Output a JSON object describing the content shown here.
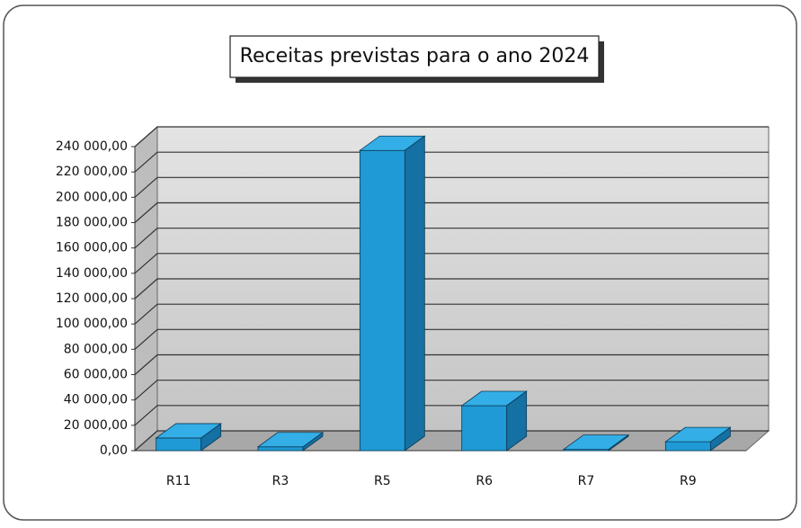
{
  "chart_data": {
    "type": "bar3d",
    "title": "Receitas previstas para o ano 2024",
    "categories": [
      "R11",
      "R3",
      "R5",
      "R6",
      "R7",
      "R9"
    ],
    "values": [
      10000,
      3000,
      237000,
      35500,
      1000,
      7000
    ],
    "color": "#1f9ad6",
    "ylim": [
      0,
      240000
    ],
    "yticks": [
      {
        "value": 0,
        "label": "0,00"
      },
      {
        "value": 20000,
        "label": "20 000,00"
      },
      {
        "value": 40000,
        "label": "40 000,00"
      },
      {
        "value": 60000,
        "label": "60 000,00"
      },
      {
        "value": 80000,
        "label": "80 000,00"
      },
      {
        "value": 100000,
        "label": "100 000,00"
      },
      {
        "value": 120000,
        "label": "120 000,00"
      },
      {
        "value": 140000,
        "label": "140 000,00"
      },
      {
        "value": 160000,
        "label": "160 000,00"
      },
      {
        "value": 180000,
        "label": "180 000,00"
      },
      {
        "value": 200000,
        "label": "200 000,00"
      },
      {
        "value": 220000,
        "label": "220 000,00"
      },
      {
        "value": 240000,
        "label": "240 000,00"
      }
    ],
    "grid": true
  }
}
